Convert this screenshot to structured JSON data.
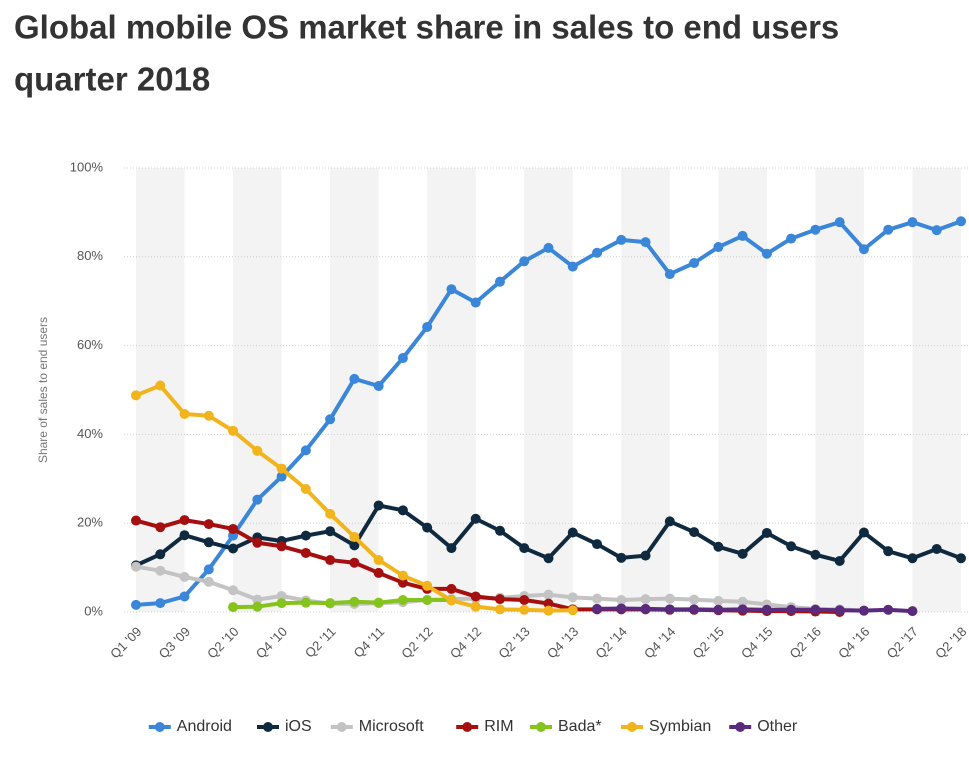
{
  "chart_data": {
    "type": "line",
    "title_lines": [
      "Global mobile OS market share in sales to end users",
      "quarter 2018"
    ],
    "y_label": "Share of sales to end users",
    "categories": [
      "Q1 '09",
      null,
      "Q3 '09",
      null,
      "Q2 '10",
      null,
      "Q4 '10",
      null,
      "Q2 '11",
      null,
      "Q4 '11",
      null,
      "Q2 '12",
      null,
      "Q4 '12",
      null,
      "Q2 '13",
      null,
      "Q4 '13",
      null,
      "Q2 '14",
      null,
      "Q4 '14",
      null,
      "Q2 '15",
      null,
      "Q4 '15",
      null,
      "Q2 '16",
      null,
      "Q4 '16",
      null,
      "Q2 '17",
      null,
      "Q2 '18"
    ],
    "ylim": [
      0,
      100
    ],
    "yticks": [
      {
        "value": 0,
        "label": "0%"
      },
      {
        "value": 20,
        "label": "20%"
      },
      {
        "value": 40,
        "label": "40%"
      },
      {
        "value": 60,
        "label": "60%"
      },
      {
        "value": 80,
        "label": "80%"
      },
      {
        "value": 100,
        "label": "100%"
      }
    ],
    "grid": true,
    "legend": "bottom",
    "series": [
      {
        "name": "Android",
        "color": "#3a86d8",
        "values": [
          1.6,
          2,
          3.5,
          9.6,
          17.2,
          25.3,
          30.5,
          36.4,
          43.4,
          52.5,
          50.9,
          57.2,
          64.2,
          72.7,
          69.7,
          74.4,
          79,
          82,
          77.8,
          80.9,
          83.8,
          83.3,
          76.1,
          78.6,
          82.2,
          84.7,
          80.7,
          84.1,
          86.1,
          87.8,
          81.7,
          86.1,
          87.8,
          86,
          88
        ]
      },
      {
        "name": "iOS",
        "color": "#0f2a3f",
        "values": [
          10.5,
          13,
          17.3,
          15.7,
          14.3,
          16.8,
          16,
          17.2,
          18.2,
          15,
          24,
          22.9,
          19,
          14.4,
          21,
          18.3,
          14.4,
          12.1,
          17.9,
          15.3,
          12.2,
          12.7,
          20.4,
          18,
          14.7,
          13.1,
          17.8,
          14.8,
          12.9,
          11.5,
          17.9,
          13.7,
          12.1,
          14.2,
          12.1
        ]
      },
      {
        "name": "Microsoft",
        "color": "#c3c3c3",
        "values": [
          10.2,
          9.3,
          7.9,
          6.8,
          4.9,
          2.8,
          3.6,
          2.6,
          1.9,
          1.8,
          2,
          2.2,
          2.7,
          2.9,
          3,
          3.2,
          3.6,
          3.9,
          3.3,
          3,
          2.7,
          2.9,
          3,
          2.8,
          2.5,
          2.3,
          1.7,
          1.1,
          0.7,
          0.6,
          0.3,
          null,
          null,
          null,
          null
        ]
      },
      {
        "name": "RIM",
        "color": "#a50f0f",
        "values": [
          20.6,
          19.1,
          20.7,
          19.8,
          18.7,
          15.6,
          14.8,
          13.3,
          11.7,
          11.1,
          8.8,
          6.6,
          5.2,
          5.2,
          3.5,
          2.9,
          2.7,
          1.9,
          0.6,
          0.6,
          0.6,
          0.6,
          0.5,
          0.5,
          0.4,
          0.3,
          0.2,
          0.2,
          0.1,
          0,
          null,
          null,
          null,
          null,
          null
        ]
      },
      {
        "name": "Bada*",
        "color": "#84c41c",
        "values": [
          null,
          null,
          null,
          null,
          1.1,
          1.2,
          2,
          2.1,
          2,
          2.3,
          2.1,
          2.7,
          2.7,
          2.7,
          null,
          null,
          null,
          null,
          null,
          null,
          null,
          null,
          null,
          null,
          null,
          null,
          null,
          null,
          null,
          null,
          null,
          null,
          null,
          null,
          null
        ]
      },
      {
        "name": "Symbian",
        "color": "#f1b41c",
        "values": [
          48.8,
          51,
          44.6,
          44.2,
          40.8,
          36.3,
          32.3,
          27.7,
          22.1,
          16.9,
          11.7,
          8.2,
          5.9,
          2.6,
          1.2,
          0.6,
          0.5,
          0.3,
          0.4,
          null,
          null,
          null,
          null,
          null,
          null,
          null,
          null,
          null,
          null,
          null,
          null,
          null,
          null,
          null,
          null
        ]
      },
      {
        "name": "Other",
        "color": "#5a2a7c",
        "values": [
          null,
          null,
          null,
          null,
          null,
          null,
          null,
          null,
          null,
          null,
          null,
          null,
          null,
          null,
          null,
          null,
          null,
          null,
          null,
          0.7,
          0.8,
          0.7,
          0.6,
          0.6,
          0.5,
          0.6,
          0.5,
          0.5,
          0.5,
          0.4,
          0.3,
          0.5,
          0.2,
          null,
          null
        ]
      }
    ]
  }
}
